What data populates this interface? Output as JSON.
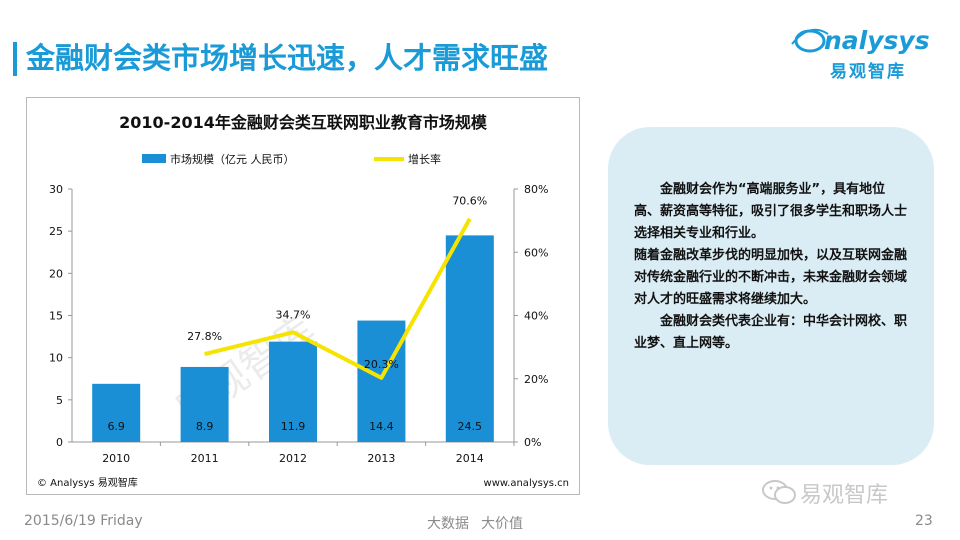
{
  "slide": {
    "title": "金融财会类市场增长迅速，人才需求旺盛"
  },
  "logo": {
    "word": "nalysys",
    "cn": "易观智库"
  },
  "chart_data": {
    "type": "bar+line",
    "title": "2010-2014年金融财会类互联网职业教育市场规模",
    "categories": [
      "2010",
      "2011",
      "2012",
      "2013",
      "2014"
    ],
    "series": [
      {
        "name": "市场规模（亿元 人民币）",
        "type": "bar",
        "axis": "left",
        "values": [
          6.9,
          8.9,
          11.9,
          14.4,
          24.5
        ],
        "labels": [
          "6.9",
          "8.9",
          "11.9",
          "14.4",
          "24.5"
        ],
        "color": "#1a8fd6"
      },
      {
        "name": "增长率",
        "type": "line",
        "axis": "right",
        "values": [
          null,
          27.8,
          34.7,
          20.3,
          70.6
        ],
        "labels": [
          "",
          "27.8%",
          "34.7%",
          "20.3%",
          "70.6%"
        ],
        "color": "#f5e400"
      }
    ],
    "ylim_left": [
      0,
      30
    ],
    "yticks_left": [
      "0",
      "5",
      "10",
      "15",
      "20",
      "25",
      "30"
    ],
    "ylim_right": [
      0,
      80
    ],
    "yticks_right": [
      "0%",
      "20%",
      "40%",
      "60%",
      "80%"
    ],
    "legend_position": "top",
    "grid": false,
    "watermark": "易观智库",
    "source_left": "© Analysys 易观智库",
    "source_right": "www.analysys.cn"
  },
  "info": {
    "p1": "金融财会作为“高端服务业”，具有地位高、薪资高等特征，吸引了很多学生和职场人士选择相关专业和行业。",
    "p2": "随着金融改革步伐的明显加快，以及互联网金融对传统金融行业的不断冲击，未来金融财会领域对人才的旺盛需求将继续加大。",
    "p3": "金融财会类代表企业有：中华会计网校、职业梦、直上网等。"
  },
  "footer": {
    "date": "2015/6/19 Friday",
    "tag1": "大数据",
    "tag2": "大价值",
    "page": "23",
    "wechat": "易观智库"
  },
  "colors": {
    "accent": "#1a9bd7",
    "bar": "#1a8fd6",
    "line": "#f5e400",
    "info_bg": "#daecf4"
  }
}
